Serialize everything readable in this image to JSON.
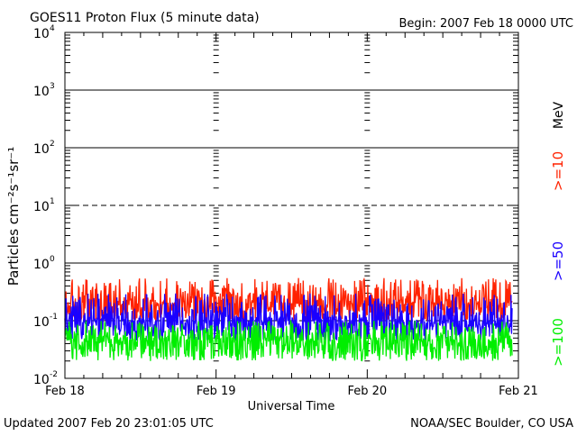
{
  "chart_data": {
    "type": "line",
    "title": "GOES11 Proton Flux (5 minute data)",
    "begin_label": "Begin: 2007 Feb 18 0000 UTC",
    "ylabel": "Particles cm⁻²s⁻¹sr⁻¹",
    "xlabel": "Universal Time",
    "yscale": "log",
    "ylim": [
      0.01,
      10000
    ],
    "y_ticks": [
      {
        "value": 10000,
        "label_base": "10",
        "label_exp": "4"
      },
      {
        "value": 1000,
        "label_base": "10",
        "label_exp": "3"
      },
      {
        "value": 100,
        "label_base": "10",
        "label_exp": "2"
      },
      {
        "value": 10,
        "label_base": "10",
        "label_exp": "1"
      },
      {
        "value": 1,
        "label_base": "10",
        "label_exp": "0"
      },
      {
        "value": 0.1,
        "label_base": "10",
        "label_exp": "-1"
      },
      {
        "value": 0.01,
        "label_base": "10",
        "label_exp": "-2"
      }
    ],
    "hlines": [
      {
        "value": 1000,
        "style": "solid"
      },
      {
        "value": 100,
        "style": "solid"
      },
      {
        "value": 10,
        "style": "dashed"
      },
      {
        "value": 1,
        "style": "solid"
      },
      {
        "value": 0.1,
        "style": "dashed"
      }
    ],
    "xlim_days": [
      0,
      3
    ],
    "x_ticks": [
      {
        "value": 0,
        "label": "Feb 18"
      },
      {
        "value": 1,
        "label": "Feb 19"
      },
      {
        "value": 2,
        "label": "Feb 20"
      },
      {
        "value": 3,
        "label": "Feb 21"
      }
    ],
    "data_end_day": 2.96,
    "series": [
      {
        "name": ">=10",
        "color": "#ff2200",
        "base": 0.2,
        "low": 0.1,
        "high": 0.55
      },
      {
        "name": ">=50",
        "color": "#1a00ff",
        "base": 0.1,
        "low": 0.045,
        "high": 0.3
      },
      {
        "name": ">=100",
        "color": "#00ee00",
        "base": 0.045,
        "low": 0.02,
        "high": 0.1
      }
    ],
    "unit_label": "MeV",
    "grid": true
  },
  "footer": {
    "updated": "Updated 2007 Feb 20 23:01:05 UTC",
    "source": "NOAA/SEC Boulder, CO USA"
  }
}
